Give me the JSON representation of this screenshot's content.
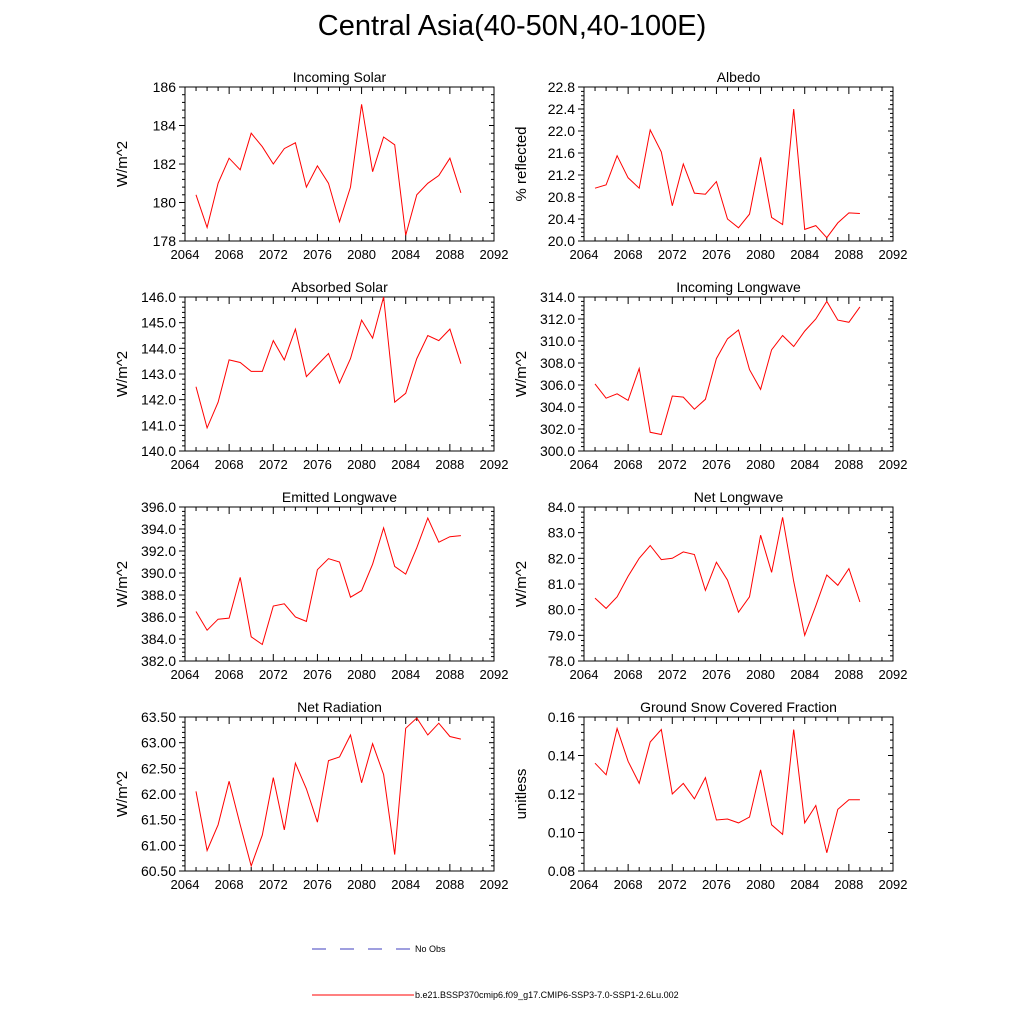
{
  "figure_title": "Central Asia(40-50N,40-100E)",
  "legend": {
    "obs_label": "No Obs",
    "obs_color": "#3f3fbf",
    "model_label": "b.e21.BSSP370cmip6.f09_g17.CMIP6-SSP3-7.0-SSP1-2.6Lu.002",
    "model_color": "#ff0000"
  },
  "chart_data": [
    {
      "type": "line",
      "title": "Incoming Solar",
      "ylabel": "W/m^2",
      "xlim": [
        2064,
        2092
      ],
      "ylim": [
        178,
        186
      ],
      "xticks": [
        "2064",
        "2068",
        "2072",
        "2076",
        "2080",
        "2084",
        "2088",
        "2092"
      ],
      "yticks": [
        "178",
        "180",
        "182",
        "184",
        "186"
      ],
      "x": [
        2065,
        2066,
        2067,
        2068,
        2069,
        2070,
        2071,
        2072,
        2073,
        2074,
        2075,
        2076,
        2077,
        2078,
        2079,
        2080,
        2081,
        2082,
        2083,
        2084,
        2085,
        2086,
        2087,
        2088,
        2089
      ],
      "series": [
        {
          "values": [
            180.4,
            178.7,
            181.0,
            182.3,
            181.7,
            183.6,
            182.9,
            182.0,
            182.8,
            183.1,
            180.8,
            181.9,
            181.0,
            179.0,
            180.8,
            185.1,
            181.6,
            183.4,
            183.0,
            178.3,
            180.4,
            181.0,
            181.4,
            182.3,
            180.5
          ]
        }
      ]
    },
    {
      "type": "line",
      "title": "Albedo",
      "ylabel": "% reflected",
      "xlim": [
        2064,
        2092
      ],
      "ylim": [
        20.0,
        22.8
      ],
      "xticks": [
        "2064",
        "2068",
        "2072",
        "2076",
        "2080",
        "2084",
        "2088",
        "2092"
      ],
      "yticks": [
        "20.0",
        "20.4",
        "20.8",
        "21.2",
        "21.6",
        "22.0",
        "22.4",
        "22.8"
      ],
      "x": [
        2065,
        2066,
        2067,
        2068,
        2069,
        2070,
        2071,
        2072,
        2073,
        2074,
        2075,
        2076,
        2077,
        2078,
        2079,
        2080,
        2081,
        2082,
        2083,
        2084,
        2085,
        2086,
        2087,
        2088,
        2089
      ],
      "series": [
        {
          "values": [
            20.96,
            21.02,
            21.55,
            21.15,
            20.96,
            22.02,
            21.62,
            20.64,
            21.4,
            20.87,
            20.85,
            21.08,
            20.4,
            20.24,
            20.49,
            21.52,
            20.43,
            20.3,
            22.4,
            20.21,
            20.28,
            20.06,
            20.33,
            20.51,
            20.5
          ]
        }
      ]
    },
    {
      "type": "line",
      "title": "Absorbed Solar",
      "ylabel": "W/m^2",
      "xlim": [
        2064,
        2092
      ],
      "ylim": [
        140.0,
        146.0
      ],
      "xticks": [
        "2064",
        "2068",
        "2072",
        "2076",
        "2080",
        "2084",
        "2088",
        "2092"
      ],
      "yticks": [
        "140.0",
        "141.0",
        "142.0",
        "143.0",
        "144.0",
        "145.0",
        "146.0"
      ],
      "x": [
        2065,
        2066,
        2067,
        2068,
        2069,
        2070,
        2071,
        2072,
        2073,
        2074,
        2075,
        2076,
        2077,
        2078,
        2079,
        2080,
        2081,
        2082,
        2083,
        2084,
        2085,
        2086,
        2087,
        2088,
        2089
      ],
      "series": [
        {
          "values": [
            142.5,
            140.9,
            141.9,
            143.55,
            143.45,
            143.1,
            143.1,
            144.3,
            143.55,
            144.75,
            142.9,
            143.35,
            143.8,
            142.65,
            143.6,
            145.1,
            144.4,
            146.0,
            141.9,
            142.25,
            143.6,
            144.5,
            144.3,
            144.75,
            143.4
          ]
        }
      ]
    },
    {
      "type": "line",
      "title": "Incoming Longwave",
      "ylabel": "W/m^2",
      "xlim": [
        2064,
        2092
      ],
      "ylim": [
        300.0,
        314.0
      ],
      "xticks": [
        "2064",
        "2068",
        "2072",
        "2076",
        "2080",
        "2084",
        "2088",
        "2092"
      ],
      "yticks": [
        "300.0",
        "302.0",
        "304.0",
        "306.0",
        "308.0",
        "310.0",
        "312.0",
        "314.0"
      ],
      "x": [
        2065,
        2066,
        2067,
        2068,
        2069,
        2070,
        2071,
        2072,
        2073,
        2074,
        2075,
        2076,
        2077,
        2078,
        2079,
        2080,
        2081,
        2082,
        2083,
        2084,
        2085,
        2086,
        2087,
        2088,
        2089
      ],
      "series": [
        {
          "values": [
            306.1,
            304.8,
            305.2,
            304.6,
            307.5,
            301.7,
            301.5,
            305.0,
            304.9,
            303.8,
            304.7,
            308.4,
            310.2,
            311.0,
            307.4,
            305.6,
            309.2,
            310.5,
            309.5,
            310.9,
            312.0,
            313.6,
            311.9,
            311.7,
            313.1
          ]
        }
      ]
    },
    {
      "type": "line",
      "title": "Emitted Longwave",
      "ylabel": "W/m^2",
      "xlim": [
        2064,
        2092
      ],
      "ylim": [
        382.0,
        396.0
      ],
      "xticks": [
        "2064",
        "2068",
        "2072",
        "2076",
        "2080",
        "2084",
        "2088",
        "2092"
      ],
      "yticks": [
        "382.0",
        "384.0",
        "386.0",
        "388.0",
        "390.0",
        "392.0",
        "394.0",
        "396.0"
      ],
      "x": [
        2065,
        2066,
        2067,
        2068,
        2069,
        2070,
        2071,
        2072,
        2073,
        2074,
        2075,
        2076,
        2077,
        2078,
        2079,
        2080,
        2081,
        2082,
        2083,
        2084,
        2085,
        2086,
        2087,
        2088,
        2089
      ],
      "series": [
        {
          "values": [
            386.5,
            384.8,
            385.8,
            385.9,
            389.6,
            384.2,
            383.5,
            387.0,
            387.2,
            386.0,
            385.6,
            390.3,
            391.3,
            391.0,
            387.8,
            388.4,
            390.8,
            394.1,
            390.6,
            389.9,
            392.3,
            395.0,
            392.8,
            393.3,
            393.4
          ]
        }
      ]
    },
    {
      "type": "line",
      "title": "Net Longwave",
      "ylabel": "W/m^2",
      "xlim": [
        2064,
        2092
      ],
      "ylim": [
        78.0,
        84.0
      ],
      "xticks": [
        "2064",
        "2068",
        "2072",
        "2076",
        "2080",
        "2084",
        "2088",
        "2092"
      ],
      "yticks": [
        "78.0",
        "79.0",
        "80.0",
        "81.0",
        "82.0",
        "83.0",
        "84.0"
      ],
      "x": [
        2065,
        2066,
        2067,
        2068,
        2069,
        2070,
        2071,
        2072,
        2073,
        2074,
        2075,
        2076,
        2077,
        2078,
        2079,
        2080,
        2081,
        2082,
        2083,
        2084,
        2085,
        2086,
        2087,
        2088,
        2089
      ],
      "series": [
        {
          "values": [
            80.45,
            80.05,
            80.5,
            81.3,
            82.0,
            82.5,
            81.95,
            82.0,
            82.25,
            82.15,
            80.75,
            81.85,
            81.15,
            79.9,
            80.5,
            82.9,
            81.45,
            83.6,
            81.1,
            79.0,
            80.15,
            81.35,
            80.95,
            81.6,
            80.3
          ]
        }
      ]
    },
    {
      "type": "line",
      "title": "Net Radiation",
      "ylabel": "W/m^2",
      "xlim": [
        2064,
        2092
      ],
      "ylim": [
        60.5,
        63.5
      ],
      "xticks": [
        "2064",
        "2068",
        "2072",
        "2076",
        "2080",
        "2084",
        "2088",
        "2092"
      ],
      "yticks": [
        "60.50",
        "61.00",
        "61.50",
        "62.00",
        "62.50",
        "63.00",
        "63.50"
      ],
      "x": [
        2065,
        2066,
        2067,
        2068,
        2069,
        2070,
        2071,
        2072,
        2073,
        2074,
        2075,
        2076,
        2077,
        2078,
        2079,
        2080,
        2081,
        2082,
        2083,
        2084,
        2085,
        2086,
        2087,
        2088,
        2089
      ],
      "series": [
        {
          "values": [
            62.05,
            60.9,
            61.4,
            62.25,
            61.4,
            60.6,
            61.2,
            62.32,
            61.3,
            62.6,
            62.1,
            61.45,
            62.65,
            62.72,
            63.15,
            62.22,
            62.98,
            62.38,
            60.82,
            63.28,
            63.48,
            63.15,
            63.38,
            63.12,
            63.07
          ]
        }
      ]
    },
    {
      "type": "line",
      "title": "Ground Snow Covered Fraction",
      "ylabel": "unitless",
      "xlim": [
        2064,
        2092
      ],
      "ylim": [
        0.08,
        0.16
      ],
      "xticks": [
        "2064",
        "2068",
        "2072",
        "2076",
        "2080",
        "2084",
        "2088",
        "2092"
      ],
      "yticks": [
        "0.08",
        "0.10",
        "0.12",
        "0.14",
        "0.16"
      ],
      "x": [
        2065,
        2066,
        2067,
        2068,
        2069,
        2070,
        2071,
        2072,
        2073,
        2074,
        2075,
        2076,
        2077,
        2078,
        2079,
        2080,
        2081,
        2082,
        2083,
        2084,
        2085,
        2086,
        2087,
        2088,
        2089
      ],
      "series": [
        {
          "values": [
            0.136,
            0.13,
            0.154,
            0.137,
            0.1255,
            0.147,
            0.1535,
            0.12,
            0.1255,
            0.1175,
            0.1285,
            0.1065,
            0.107,
            0.105,
            0.108,
            0.1325,
            0.104,
            0.099,
            0.1535,
            0.105,
            0.114,
            0.0895,
            0.112,
            0.117,
            0.117
          ]
        }
      ]
    }
  ]
}
